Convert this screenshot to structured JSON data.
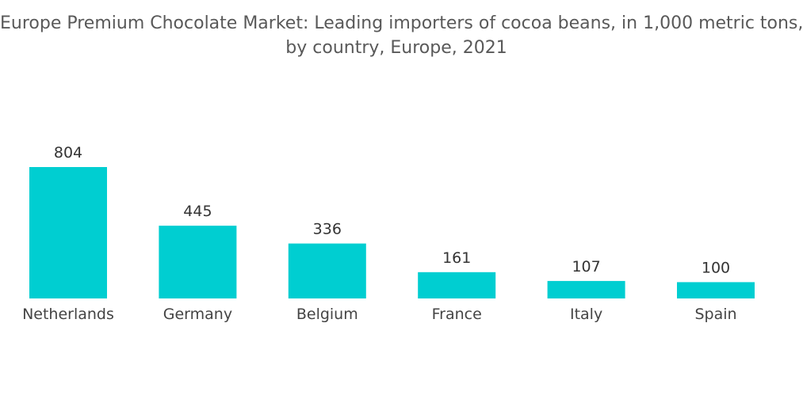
{
  "chart_data": {
    "type": "bar",
    "title_lines": [
      "Europe Premium Chocolate Market: Leading importers of cocoa beans, in 1,000 metric tons,",
      "by country, Europe, 2021"
    ],
    "categories": [
      "Netherlands",
      "Germany",
      "Belgium",
      "France",
      "Italy",
      "Spain"
    ],
    "values": [
      804,
      445,
      336,
      161,
      107,
      100
    ],
    "xlabel": "",
    "ylabel": "",
    "ylim": [
      0,
      804
    ],
    "grid": false,
    "legend": "none",
    "bar_color": "#00CED1"
  }
}
